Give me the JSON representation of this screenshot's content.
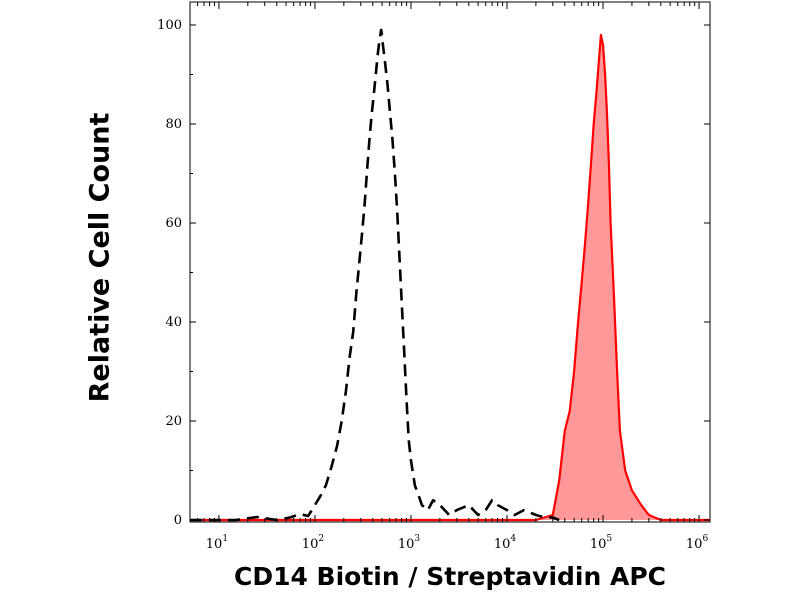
{
  "chart_data": {
    "type": "area",
    "title": "",
    "xlabel": "CD14 Biotin / Streptavidin APC",
    "ylabel": "Relative Cell Count",
    "x_scale": "log",
    "xlim": [
      5,
      1300000
    ],
    "ylim": [
      0,
      100
    ],
    "x_ticks": [
      {
        "base": "10",
        "exp": "1",
        "value": 10
      },
      {
        "base": "10",
        "exp": "2",
        "value": 100
      },
      {
        "base": "10",
        "exp": "3",
        "value": 1000
      },
      {
        "base": "10",
        "exp": "4",
        "value": 10000
      },
      {
        "base": "10",
        "exp": "5",
        "value": 100000
      },
      {
        "base": "10",
        "exp": "6",
        "value": 1000000
      }
    ],
    "y_ticks": [
      "0",
      "20",
      "40",
      "60",
      "80",
      "100"
    ],
    "y_tick_values": [
      0,
      20,
      40,
      60,
      80,
      100
    ],
    "grid": false,
    "series": [
      {
        "style": "dashed",
        "fill": false,
        "color": "#000000",
        "x": [
          5,
          15,
          25,
          40,
          55,
          70,
          85,
          100,
          115,
          130,
          150,
          170,
          190,
          210,
          230,
          250,
          270,
          290,
          310,
          330,
          350,
          370,
          390,
          410,
          430,
          450,
          470,
          490,
          510,
          540,
          570,
          600,
          640,
          680,
          720,
          760,
          800,
          850,
          900,
          950,
          1000,
          1100,
          1200,
          1300,
          1500,
          1700,
          2000,
          2500,
          3000,
          4000,
          5000,
          6000,
          7000,
          8000,
          10000,
          12000,
          15000,
          20000,
          25000,
          30000,
          35000
        ],
        "y": [
          0,
          0,
          0.6,
          0,
          0.5,
          1.2,
          0.8,
          3,
          5,
          7,
          11,
          15,
          20,
          26,
          33,
          38,
          46,
          52,
          58,
          64,
          71,
          77,
          82,
          86,
          90,
          94,
          97,
          99,
          96,
          92,
          88,
          83,
          77,
          70,
          62,
          53,
          44,
          34,
          24,
          16,
          12,
          7,
          5,
          3,
          2,
          4,
          3,
          1,
          2,
          3,
          1,
          2,
          4,
          3,
          2,
          1,
          2,
          1,
          0.5,
          0.5,
          0
        ]
      },
      {
        "style": "solid",
        "fill": true,
        "color": "#ff0000",
        "fill_color": "#ff9999",
        "x": [
          5,
          20000,
          30000,
          35000,
          40000,
          45000,
          50000,
          55000,
          60000,
          65000,
          70000,
          75000,
          80000,
          85000,
          90000,
          95000,
          100000,
          105000,
          110000,
          115000,
          120000,
          130000,
          140000,
          150000,
          170000,
          200000,
          250000,
          300000,
          400000,
          1300000
        ],
        "y": [
          0,
          0,
          1,
          8,
          18,
          22,
          30,
          40,
          48,
          56,
          64,
          72,
          80,
          86,
          92,
          98,
          96,
          90,
          82,
          72,
          60,
          45,
          30,
          18,
          10,
          6,
          3,
          1,
          0,
          0
        ]
      }
    ]
  }
}
